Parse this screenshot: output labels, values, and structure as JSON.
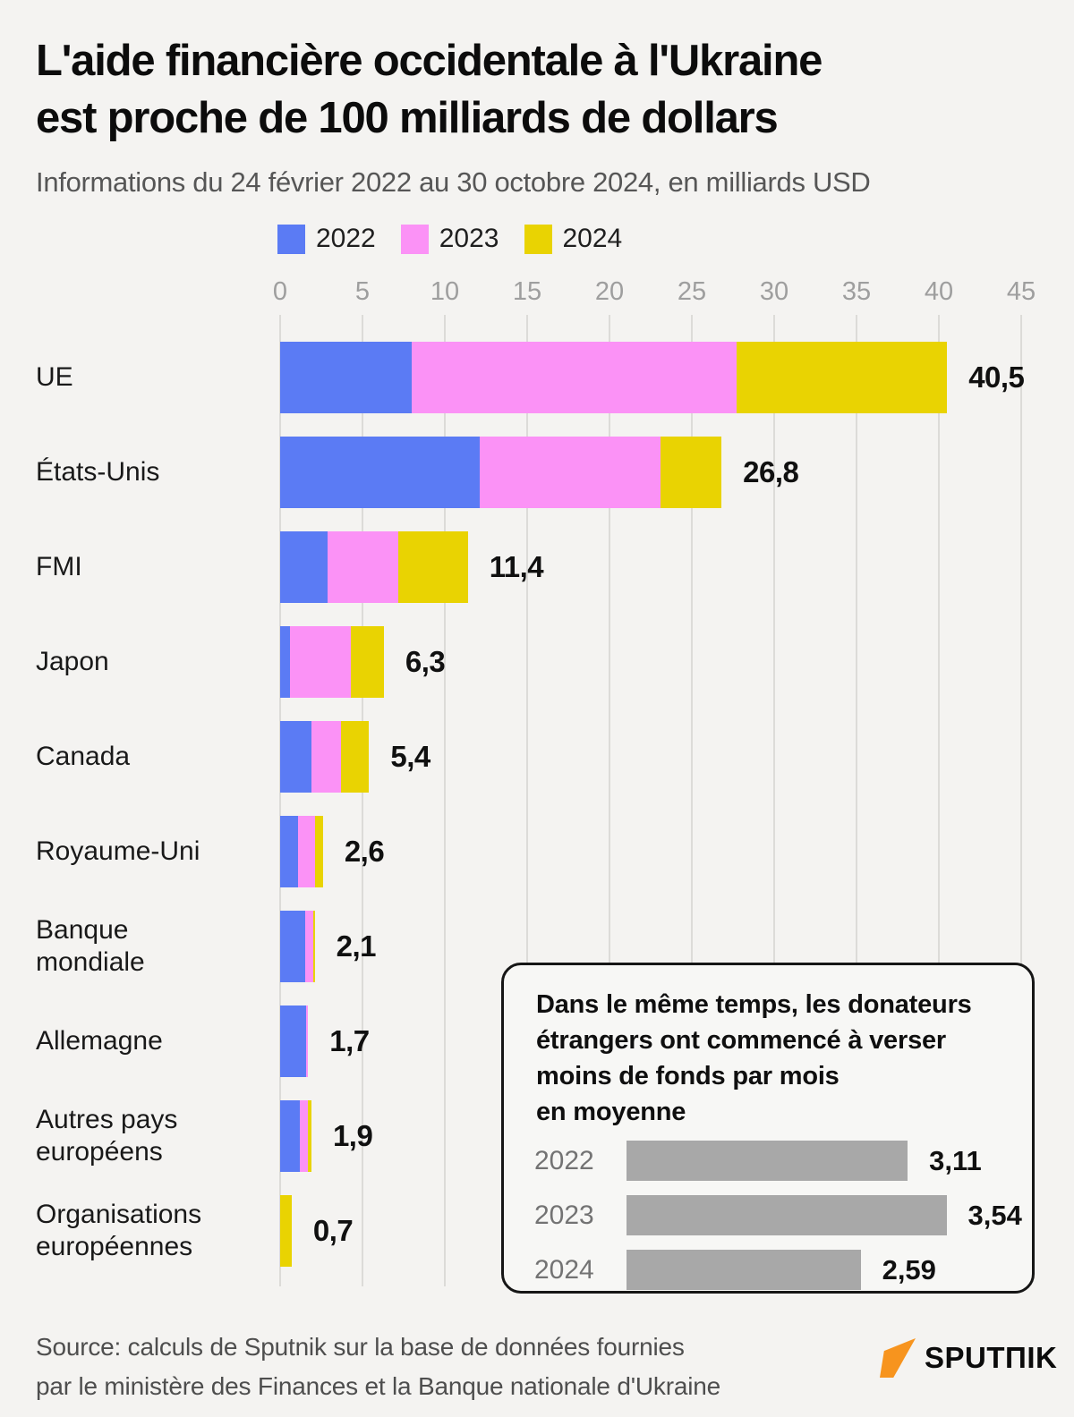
{
  "header": {
    "title_line1": "L'aide financière occidentale à l'Ukraine",
    "title_line2": "est proche de 100 milliards de dollars",
    "subtitle": "Informations du 24 février 2022 au 30 octobre 2024, en milliards USD"
  },
  "colors": {
    "year_2022": "#5b7bf4",
    "year_2023": "#fb92f6",
    "year_2024": "#e9d302",
    "inset_bar": "#a8a8a8",
    "background": "#f4f3f1",
    "grid": "#dcdbd8",
    "tick_label": "#9e9e9e",
    "logo_flag": "#f7941e"
  },
  "chart_data": [
    {
      "type": "bar",
      "orientation": "horizontal",
      "stacked": true,
      "title": "L'aide financière occidentale à l'Ukraine est proche de 100 milliards de dollars",
      "unit": "milliards USD",
      "x_axis": {
        "min": 0,
        "max": 45,
        "ticks": [
          0,
          5,
          10,
          15,
          20,
          25,
          30,
          35,
          40,
          45
        ],
        "gridlines": true
      },
      "legend": {
        "position": "top",
        "entries": [
          {
            "label": "2022",
            "color": "#5b7bf4"
          },
          {
            "label": "2023",
            "color": "#fb92f6"
          },
          {
            "label": "2024",
            "color": "#e9d302"
          }
        ]
      },
      "categories": [
        "UE",
        "États-Unis",
        "FMI",
        "Japon",
        "Canada",
        "Royaume-Uni",
        "Banque\nmondiale",
        "Allemagne",
        "Autres pays\neuropéens",
        "Organisations\neuropéennes"
      ],
      "series": [
        {
          "name": "2022",
          "color": "#5b7bf4",
          "values": [
            8.0,
            12.1,
            2.9,
            0.6,
            1.9,
            1.1,
            1.5,
            1.6,
            1.2,
            0
          ]
        },
        {
          "name": "2023",
          "color": "#fb92f6",
          "values": [
            19.7,
            11.0,
            4.3,
            3.7,
            1.8,
            1.0,
            0.5,
            0.1,
            0.5,
            0
          ]
        },
        {
          "name": "2024",
          "color": "#e9d302",
          "values": [
            12.8,
            3.7,
            4.2,
            2.0,
            1.7,
            0.5,
            0.1,
            0,
            0.2,
            0.7
          ]
        }
      ],
      "totals": [
        40.5,
        26.8,
        11.4,
        6.3,
        5.4,
        2.6,
        2.1,
        1.7,
        1.9,
        0.7
      ],
      "total_labels": [
        "40,5",
        "26,8",
        "11,4",
        "6,3",
        "5,4",
        "2,6",
        "2,1",
        "1,7",
        "1,9",
        "0,7"
      ]
    },
    {
      "type": "bar",
      "orientation": "horizontal",
      "title": "Dans le même temps, les donateurs étrangers ont commencé à verser moins de fonds par mois en moyenne",
      "categories": [
        "2022",
        "2023",
        "2024"
      ],
      "values": [
        3.11,
        3.54,
        2.59
      ],
      "value_labels": [
        "3,11",
        "3,54",
        "2,59"
      ],
      "bar_color": "#a8a8a8",
      "xlim": [
        0,
        3.54
      ]
    }
  ],
  "inset": {
    "title": "Dans le même temps, les donateurs\nétrangers ont commencé à verser\nmoins de fonds par mois\nen moyenne"
  },
  "source": {
    "line1": "Source: calculs de Sputnik sur la base de données fournies",
    "line2": "par le ministère des Finances et la Banque nationale d'Ukraine"
  },
  "logo": {
    "text": "SPUTΠIK",
    "flag_color": "#f7941e"
  }
}
